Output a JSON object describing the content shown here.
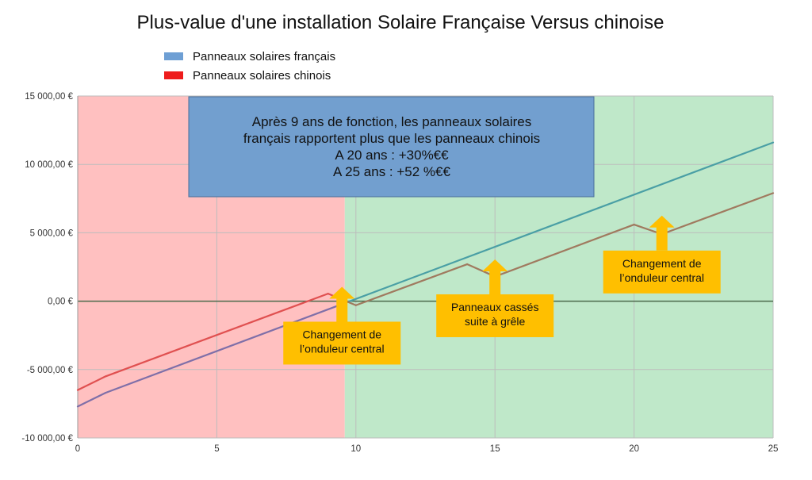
{
  "chart_data": {
    "type": "line",
    "title": "Plus-value d'une installation Solaire Française Versus chinoise",
    "xlabel": "",
    "ylabel": "",
    "xlim": [
      0,
      25
    ],
    "ylim": [
      -10000,
      15000
    ],
    "x_ticks": [
      "0",
      "5",
      "10",
      "15",
      "20",
      "25"
    ],
    "y_ticks": [
      "15 000,00 €",
      "10 000,00 €",
      "5 000,00 €",
      "0,00 €",
      "-5 000,00 €",
      "-10 000,00 €"
    ],
    "grid": true,
    "legend_position": "top-left",
    "series": [
      {
        "name": "Panneaux solaires français",
        "legend_color": "#6e9fd4",
        "colors": [
          "#7f6fa8",
          "#4a9fa5"
        ],
        "x": [
          0,
          1,
          25
        ],
        "y": [
          -7700,
          -6700,
          11600
        ]
      },
      {
        "name": "Panneaux solaires chinois",
        "legend_color": "#ee1c1c",
        "colors": [
          "#e05050",
          "#a07a5f"
        ],
        "x": [
          0,
          1,
          9,
          10,
          14,
          15,
          20,
          21,
          25
        ],
        "y": [
          -6500,
          -5500,
          550,
          -300,
          2700,
          1800,
          5600,
          4900,
          7900
        ]
      }
    ],
    "regions": [
      {
        "name": "negative",
        "x": [
          0,
          9.6
        ],
        "color": "#ffc0c0"
      },
      {
        "name": "positive",
        "x": [
          9.6,
          25
        ],
        "color": "#bfe8c9"
      }
    ],
    "info_box": {
      "lines": [
        "Après 9 ans de fonction, les panneaux solaires",
        "français rapportent plus que les panneaux chinois",
        "A 20 ans : +30%€€",
        "A 25 ans : +52 %€€"
      ],
      "color": "#729fcf"
    },
    "annotations": [
      {
        "lines": [
          "Changement de",
          "l’onduleur central"
        ],
        "x": 9.5,
        "y": -1500
      },
      {
        "lines": [
          "Panneaux cassés",
          "suite à grêle"
        ],
        "x": 15,
        "y": 500
      },
      {
        "lines": [
          "Changement de",
          "l’onduleur central"
        ],
        "x": 21,
        "y": 3700
      }
    ],
    "annotation_color": "#ffbf00",
    "zero_line_color": "#4b6a4b"
  }
}
